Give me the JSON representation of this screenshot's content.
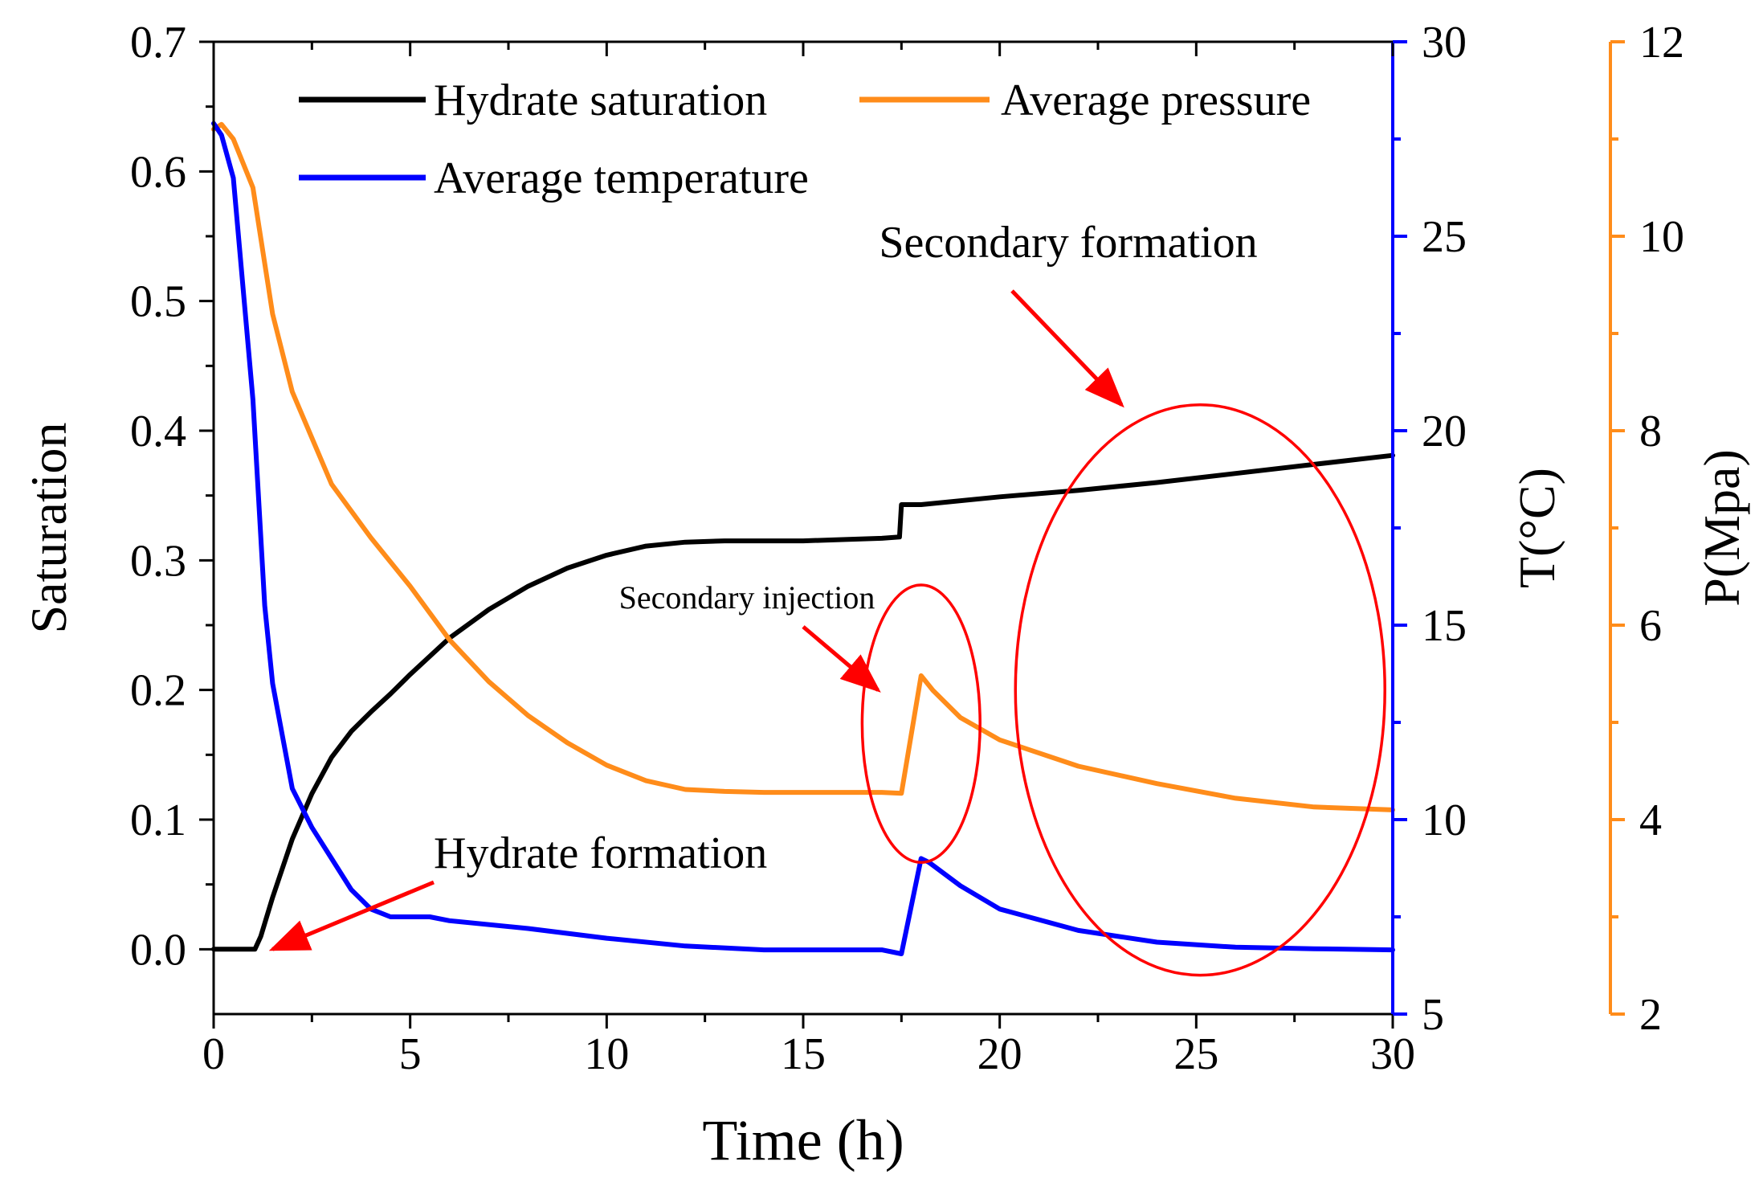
{
  "chart_data": {
    "type": "line",
    "xlabel": "Time (h)",
    "xlim": [
      0,
      30
    ],
    "xticks": [
      0,
      5,
      10,
      15,
      20,
      25,
      30
    ],
    "grid": false,
    "legend_position": "top",
    "axes": {
      "saturation": {
        "label": "Saturation",
        "lim": [
          -0.05,
          0.7
        ],
        "ticks": [
          0.0,
          0.1,
          0.2,
          0.3,
          0.4,
          0.5,
          0.6,
          0.7
        ],
        "color": "#000000",
        "side": "left"
      },
      "temperature": {
        "label": "T(°C)",
        "lim": [
          5,
          30
        ],
        "ticks": [
          5,
          10,
          15,
          20,
          25,
          30
        ],
        "color": "#0000ff",
        "side": "right"
      },
      "pressure": {
        "label": "P(Mpa)",
        "lim": [
          2,
          12
        ],
        "ticks": [
          2,
          4,
          6,
          8,
          10,
          12
        ],
        "color": "#ff8c1a",
        "side": "right-offset"
      }
    },
    "series": [
      {
        "name": "Hydrate saturation",
        "axis": "saturation",
        "color": "#000000",
        "x": [
          0,
          0.5,
          1.05,
          1.2,
          1.5,
          2.0,
          2.5,
          3.0,
          3.5,
          4.0,
          4.5,
          5.0,
          6.0,
          7.0,
          8.0,
          9.0,
          10.0,
          11.0,
          12.0,
          13.0,
          14.0,
          15.0,
          16.0,
          17.0,
          17.45,
          17.5,
          18.0,
          20.0,
          22.0,
          24.0,
          26.0,
          28.0,
          30.0
        ],
        "values": [
          0.0,
          0.0,
          0.0,
          0.01,
          0.04,
          0.085,
          0.12,
          0.148,
          0.168,
          0.183,
          0.197,
          0.212,
          0.24,
          0.262,
          0.28,
          0.294,
          0.304,
          0.311,
          0.314,
          0.315,
          0.315,
          0.315,
          0.316,
          0.317,
          0.318,
          0.343,
          0.343,
          0.349,
          0.354,
          0.36,
          0.367,
          0.374,
          0.381
        ]
      },
      {
        "name": "Average pressure",
        "axis": "pressure",
        "color": "#ff8c1a",
        "x": [
          0,
          0.2,
          0.5,
          1.0,
          1.5,
          2.0,
          3.0,
          4.0,
          5.0,
          6.0,
          7.0,
          8.0,
          9.0,
          10.0,
          11.0,
          12.0,
          13.0,
          14.0,
          15.0,
          16.0,
          17.0,
          17.5,
          18.0,
          18.3,
          19.0,
          20.0,
          22.0,
          24.0,
          26.0,
          28.0,
          30.0
        ],
        "values": [
          11.1,
          11.15,
          11.0,
          10.5,
          9.2,
          8.4,
          7.45,
          6.9,
          6.4,
          5.85,
          5.42,
          5.07,
          4.79,
          4.56,
          4.4,
          4.31,
          4.29,
          4.28,
          4.28,
          4.28,
          4.28,
          4.27,
          5.48,
          5.33,
          5.05,
          4.82,
          4.55,
          4.37,
          4.22,
          4.13,
          4.1
        ]
      },
      {
        "name": "Average temperature",
        "axis": "temperature",
        "color": "#0000ff",
        "x": [
          0,
          0.2,
          0.5,
          1.0,
          1.3,
          1.5,
          2.0,
          2.5,
          3.0,
          3.5,
          4.0,
          4.5,
          5.0,
          5.5,
          6.0,
          8.0,
          10.0,
          12.0,
          14.0,
          16.0,
          17.0,
          17.5,
          18.0,
          18.2,
          19.0,
          20.0,
          22.0,
          24.0,
          26.0,
          28.0,
          30.0
        ],
        "values": [
          27.9,
          27.6,
          26.5,
          20.8,
          15.5,
          13.5,
          10.8,
          9.8,
          9.0,
          8.2,
          7.7,
          7.5,
          7.5,
          7.5,
          7.4,
          7.2,
          6.95,
          6.75,
          6.65,
          6.65,
          6.65,
          6.55,
          9.0,
          8.9,
          8.3,
          7.7,
          7.15,
          6.85,
          6.72,
          6.68,
          6.65
        ]
      }
    ],
    "annotations": [
      {
        "label": "Hydrate formation",
        "target_x": 1.5,
        "target_y": 0.0,
        "axis": "saturation"
      },
      {
        "label": "Secondary injection",
        "target_x": 16.9,
        "target_y": 0.2,
        "axis": "saturation"
      },
      {
        "label": "Secondary formation",
        "target_x": 23.1,
        "target_y": 0.42,
        "axis": "saturation"
      }
    ],
    "highlight_ellipses": [
      {
        "center_x": 18.0,
        "center_y": 0.174,
        "axis": "saturation",
        "radius_x": 1.5,
        "radius_y": 0.107
      },
      {
        "center_x": 25.1,
        "center_y": 0.2,
        "axis": "saturation",
        "radius_x": 4.7,
        "radius_y": 0.22
      }
    ],
    "annotation_color": "#ff0000"
  }
}
